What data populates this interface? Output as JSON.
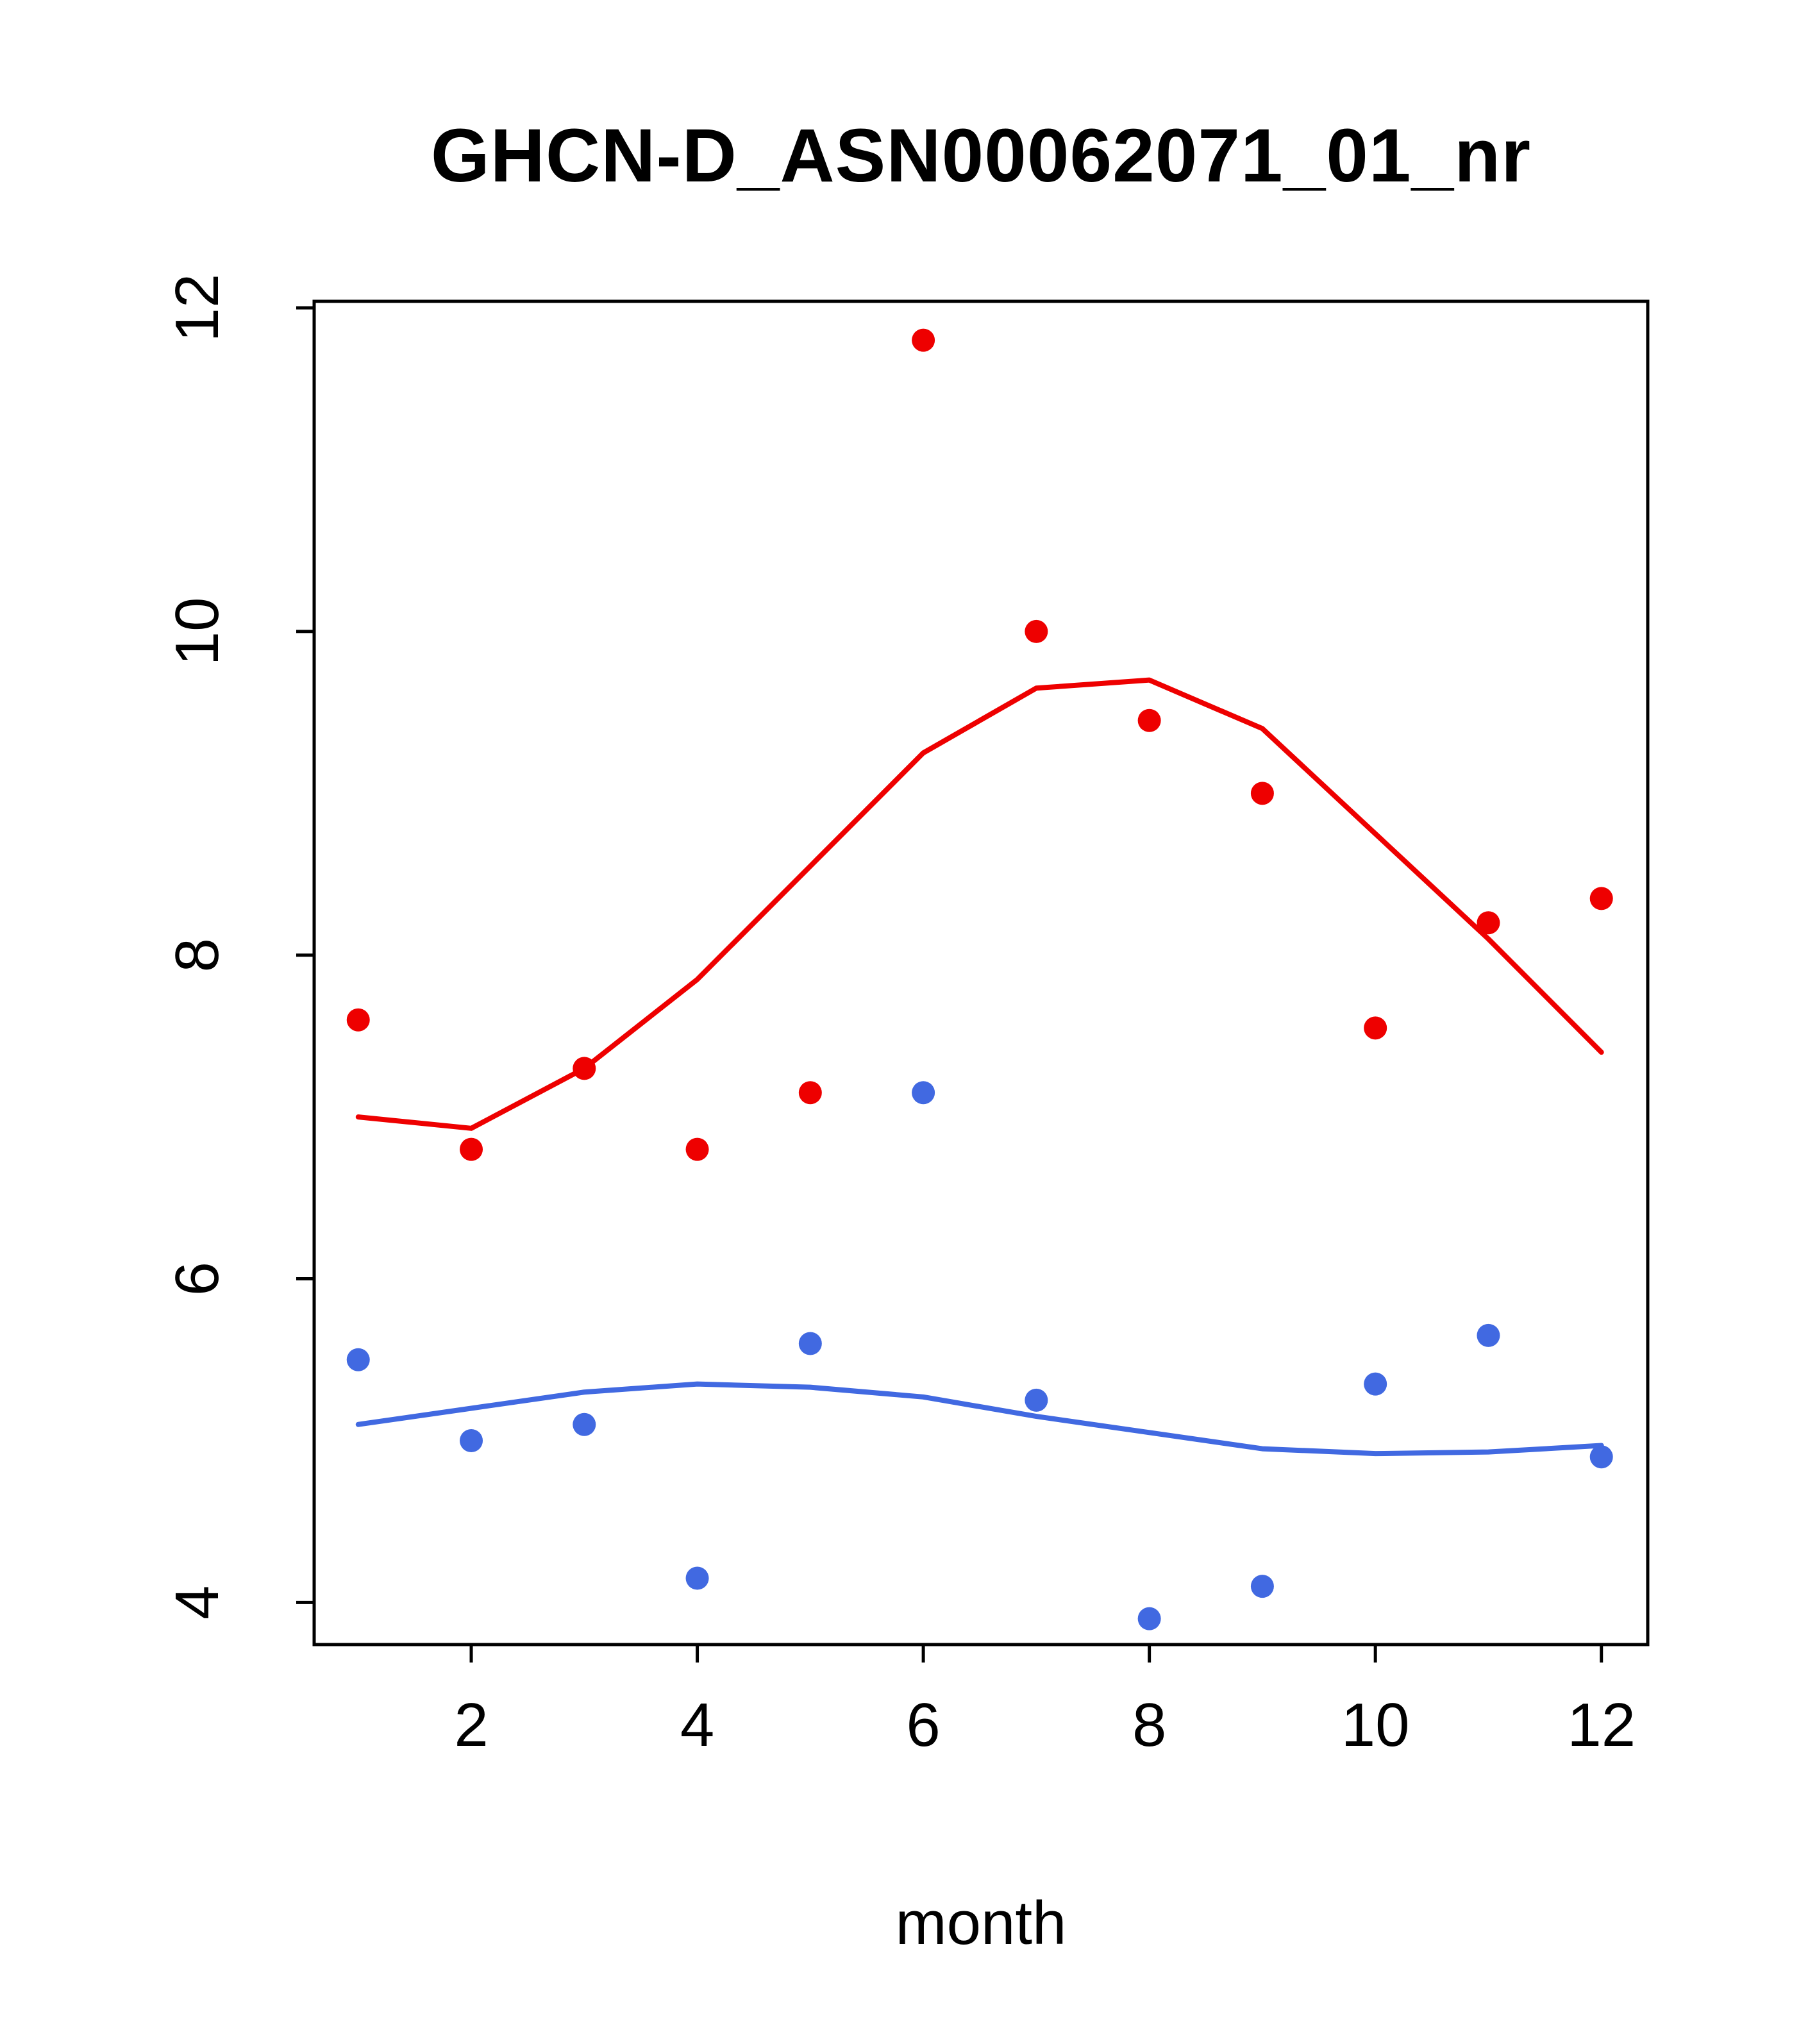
{
  "title": "GHCN-D_ASN00062071_01_nr",
  "xlabel": "month",
  "colors": {
    "red_series": "#EE0000",
    "blue_series": "#4169E1",
    "axis": "#000000",
    "background": "#FFFFFF"
  },
  "chart_data": {
    "type": "scatter",
    "title": "GHCN-D_ASN00062071_01_nr",
    "xlabel": "month",
    "ylabel": "",
    "grid": false,
    "legend": null,
    "x": [
      1,
      2,
      3,
      4,
      5,
      6,
      7,
      8,
      9,
      10,
      11,
      12
    ],
    "series": [
      {
        "name": "red-points",
        "color": "#EE0000",
        "values": [
          7.6,
          6.8,
          7.3,
          6.8,
          7.15,
          11.8,
          10.0,
          9.45,
          9.0,
          7.55,
          8.2,
          8.35
        ]
      },
      {
        "name": "blue-points",
        "color": "#4169E1",
        "values": [
          5.5,
          5.0,
          5.1,
          4.15,
          5.6,
          7.15,
          5.25,
          3.9,
          4.1,
          5.35,
          5.65,
          4.9
        ]
      }
    ],
    "smooth_lines": [
      {
        "name": "red-smooth-line",
        "color": "#EE0000",
        "x": [
          1,
          2,
          3,
          4,
          5,
          6,
          7,
          8,
          9,
          10,
          11,
          12
        ],
        "values": [
          7.0,
          6.93,
          7.3,
          7.85,
          8.55,
          9.25,
          9.65,
          9.7,
          9.4,
          8.75,
          8.1,
          7.4
        ]
      },
      {
        "name": "blue-smooth-line",
        "color": "#4169E1",
        "x": [
          1,
          2,
          3,
          4,
          5,
          6,
          7,
          8,
          9,
          10,
          11,
          12
        ],
        "values": [
          5.1,
          5.2,
          5.3,
          5.35,
          5.33,
          5.27,
          5.15,
          5.05,
          4.95,
          4.92,
          4.93,
          4.97
        ]
      }
    ],
    "xticks": [
      2,
      4,
      6,
      8,
      10,
      12
    ],
    "yticks": [
      4,
      6,
      8,
      10,
      12
    ],
    "xlim": [
      0.61,
      12.41
    ],
    "ylim": [
      3.74,
      12.04
    ]
  }
}
